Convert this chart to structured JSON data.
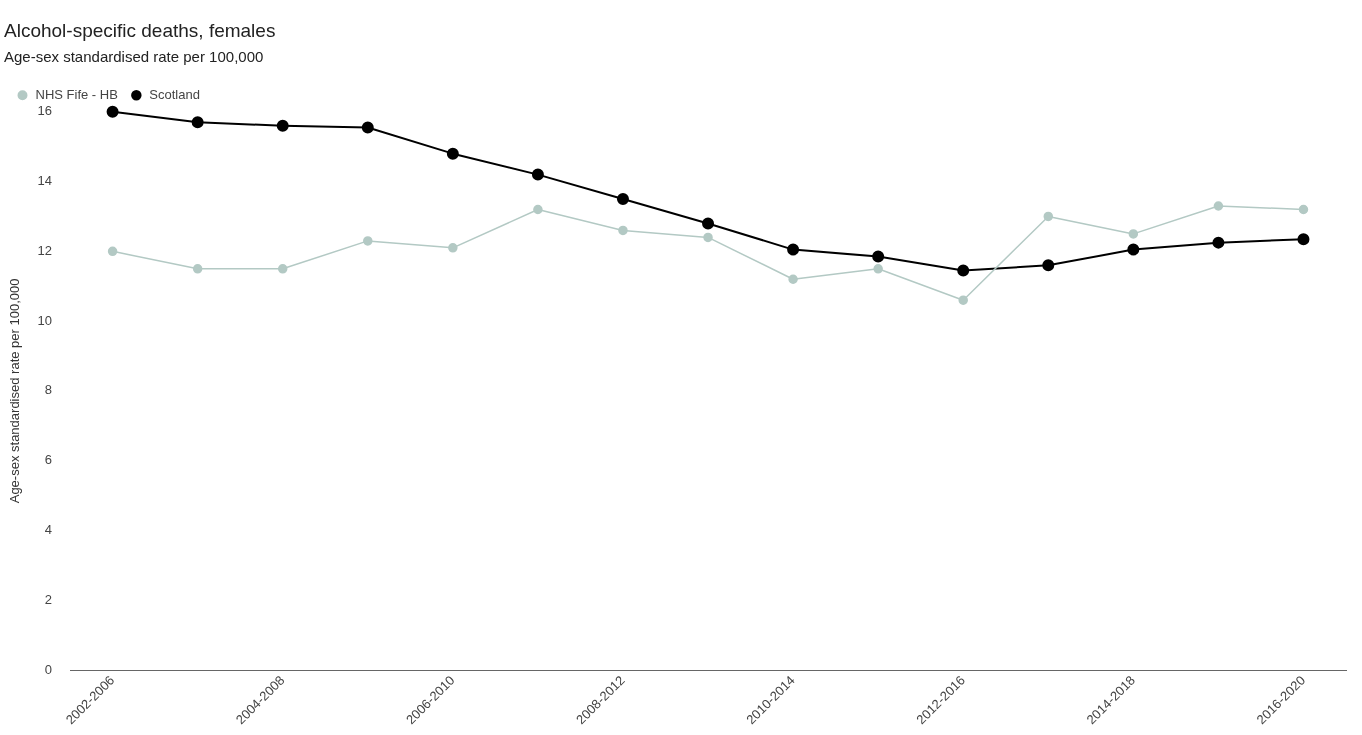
{
  "chart_data": {
    "type": "line",
    "title": "Alcohol-specific deaths, females",
    "subtitle": "Age-sex standardised rate per 100,000",
    "ylabel": "Age-sex standardised rate per 100,000",
    "categories": [
      "2002-2006",
      null,
      "2004-2008",
      null,
      "2006-2010",
      null,
      "2008-2012",
      null,
      "2010-2014",
      null,
      "2012-2016",
      null,
      "2014-2018",
      null,
      "2016-2020"
    ],
    "series": [
      {
        "name": "NHS Fife - HB",
        "color": "#b3c9c4",
        "values": [
          12.0,
          11.5,
          11.5,
          12.3,
          12.1,
          13.2,
          12.6,
          12.4,
          11.2,
          11.5,
          10.6,
          13.0,
          12.5,
          13.3,
          13.2
        ]
      },
      {
        "name": "Scotland",
        "color": "#000000",
        "values": [
          16.0,
          15.7,
          15.6,
          15.55,
          14.8,
          14.2,
          13.5,
          12.8,
          12.05,
          11.85,
          11.45,
          11.6,
          12.05,
          12.25,
          12.35
        ]
      }
    ],
    "ylim": [
      0,
      16
    ],
    "yticks": [
      0,
      2,
      4,
      6,
      8,
      10,
      12,
      14,
      16
    ],
    "grid": false,
    "legend": "top left",
    "marker": "circle",
    "line_style": "solid"
  }
}
